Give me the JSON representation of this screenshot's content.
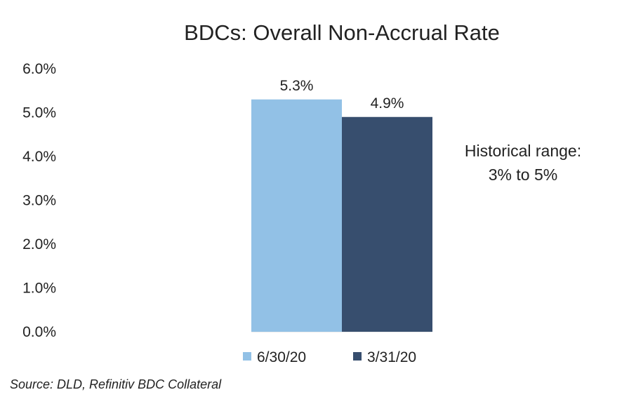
{
  "chart_data": {
    "type": "bar",
    "title": "BDCs: Overall Non-Accrual Rate",
    "categories": [
      ""
    ],
    "series": [
      {
        "name": "6/30/20",
        "values": [
          5.3
        ],
        "labels": [
          "5.3%"
        ],
        "color": "#92C1E6"
      },
      {
        "name": "3/31/20",
        "values": [
          4.9
        ],
        "labels": [
          "4.9%"
        ],
        "color": "#374E6E"
      }
    ],
    "ylim": [
      0,
      6
    ],
    "y_ticks": [
      "0.0%",
      "1.0%",
      "2.0%",
      "3.0%",
      "4.0%",
      "5.0%",
      "6.0%"
    ],
    "grid": false,
    "legend_position": "bottom",
    "annotation": [
      "Historical range:",
      "3% to 5%"
    ]
  },
  "source": "Source: DLD, Refinitiv BDC Collateral"
}
